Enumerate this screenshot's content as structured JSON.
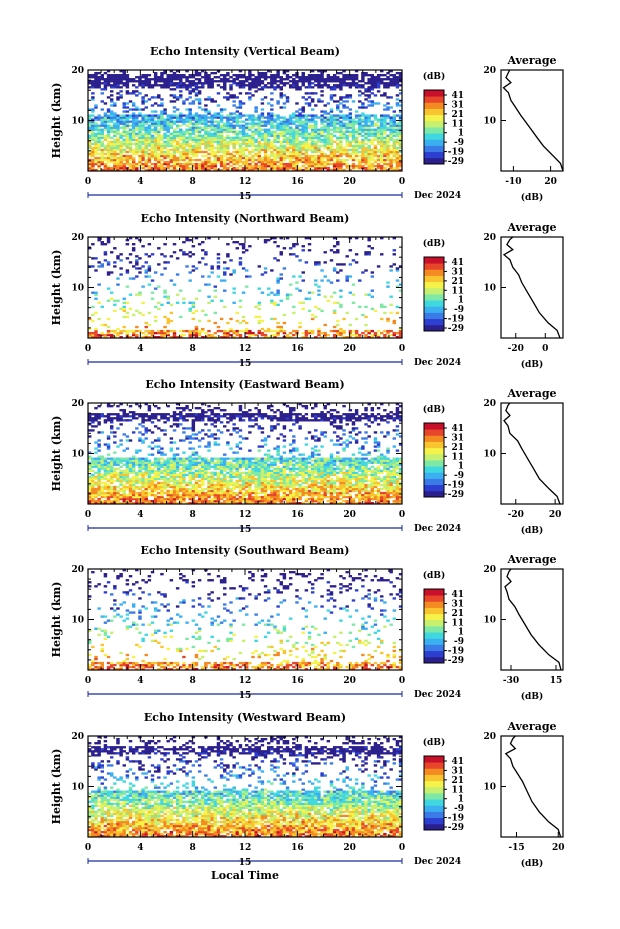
{
  "colors": {
    "scale": [
      "#2a1f8c",
      "#2d3fd0",
      "#3a7be8",
      "#3bb0f0",
      "#40d8e0",
      "#7ee8a6",
      "#c8f070",
      "#f5f24a",
      "#f8c430",
      "#f48a22",
      "#e8462a",
      "#c8102a"
    ]
  },
  "colorbar": {
    "unit": "(dB)",
    "ticks": [
      "41",
      "31",
      "21",
      "11",
      "1",
      "-9",
      "-19",
      "-29"
    ]
  },
  "xaxis": {
    "ticks": [
      "0",
      "4",
      "8",
      "12",
      "16",
      "20",
      "0"
    ],
    "day_label": "15",
    "month_label": "Dec 2024",
    "title": "Local Time"
  },
  "height_axis": {
    "label": "Height (km)",
    "ticks": [
      "20",
      "10"
    ],
    "avg_label": "Average",
    "avg_unit": "(dB)"
  },
  "chart_data": [
    {
      "type": "heatmap",
      "title": "Echo Intensity (Vertical Beam)",
      "ylabel": "Height (km)",
      "xlim": [
        0,
        24
      ],
      "ylim": [
        0,
        20
      ],
      "zlim": [
        -29,
        41
      ],
      "avg_ticks": [
        "-10",
        "20"
      ],
      "avg_xlim": [
        -20,
        30
      ],
      "profile": [
        [
          0,
          30
        ],
        [
          1.5,
          28
        ],
        [
          3,
          22
        ],
        [
          5,
          14
        ],
        [
          7,
          8
        ],
        [
          9,
          2
        ],
        [
          11,
          -4
        ],
        [
          12.5,
          -8
        ],
        [
          14,
          -12
        ],
        [
          15.5,
          -14
        ],
        [
          16.5,
          -18
        ],
        [
          17.5,
          -12
        ],
        [
          18.5,
          -16
        ],
        [
          19.5,
          -14
        ],
        [
          20,
          -13
        ]
      ]
    },
    {
      "type": "heatmap",
      "title": "Echo Intensity (Northward Beam)",
      "ylabel": "Height (km)",
      "xlim": [
        0,
        24
      ],
      "ylim": [
        0,
        20
      ],
      "zlim": [
        -29,
        41
      ],
      "avg_ticks": [
        "-20",
        "0"
      ],
      "avg_xlim": [
        -30,
        12
      ],
      "profile": [
        [
          0,
          10
        ],
        [
          1.5,
          8
        ],
        [
          3,
          2
        ],
        [
          5,
          -4
        ],
        [
          7,
          -8
        ],
        [
          9,
          -12
        ],
        [
          11,
          -16
        ],
        [
          12.5,
          -18
        ],
        [
          14,
          -22
        ],
        [
          15.5,
          -24
        ],
        [
          16.5,
          -28
        ],
        [
          17.5,
          -22
        ],
        [
          18.5,
          -26
        ],
        [
          19.5,
          -24
        ],
        [
          20,
          -22
        ]
      ]
    },
    {
      "type": "heatmap",
      "title": "Echo Intensity (Eastward Beam)",
      "ylabel": "Height (km)",
      "xlim": [
        0,
        24
      ],
      "ylim": [
        0,
        20
      ],
      "zlim": [
        -29,
        41
      ],
      "avg_ticks": [
        "-20",
        "20"
      ],
      "avg_xlim": [
        -35,
        28
      ],
      "profile": [
        [
          0,
          25
        ],
        [
          1.5,
          22
        ],
        [
          3,
          14
        ],
        [
          5,
          4
        ],
        [
          7,
          -2
        ],
        [
          9,
          -8
        ],
        [
          11,
          -14
        ],
        [
          12.5,
          -18
        ],
        [
          14,
          -26
        ],
        [
          15.5,
          -28
        ],
        [
          16.5,
          -32
        ],
        [
          17.5,
          -26
        ],
        [
          18.5,
          -30
        ],
        [
          19.5,
          -28
        ],
        [
          20,
          -26
        ]
      ]
    },
    {
      "type": "heatmap",
      "title": "Echo Intensity (Southward Beam)",
      "ylabel": "Height (km)",
      "xlim": [
        0,
        24
      ],
      "ylim": [
        0,
        20
      ],
      "zlim": [
        -29,
        41
      ],
      "avg_ticks": [
        "-30",
        "15"
      ],
      "avg_xlim": [
        -40,
        22
      ],
      "profile": [
        [
          0,
          20
        ],
        [
          1.5,
          18
        ],
        [
          3,
          8
        ],
        [
          5,
          -2
        ],
        [
          7,
          -10
        ],
        [
          9,
          -16
        ],
        [
          11,
          -22
        ],
        [
          12.5,
          -26
        ],
        [
          14,
          -32
        ],
        [
          15.5,
          -34
        ],
        [
          16.5,
          -36
        ],
        [
          17.5,
          -30
        ],
        [
          18.5,
          -34
        ],
        [
          19.5,
          -32
        ],
        [
          20,
          -30
        ]
      ]
    },
    {
      "type": "heatmap",
      "title": "Echo Intensity (Westward Beam)",
      "ylabel": "Height (km)",
      "xlim": [
        0,
        24
      ],
      "ylim": [
        0,
        20
      ],
      "zlim": [
        -29,
        41
      ],
      "avg_ticks": [
        "-15",
        "20"
      ],
      "avg_xlim": [
        -28,
        24
      ],
      "profile": [
        [
          0,
          22
        ],
        [
          1.5,
          20
        ],
        [
          3,
          12
        ],
        [
          5,
          4
        ],
        [
          7,
          -2
        ],
        [
          9,
          -6
        ],
        [
          11,
          -10
        ],
        [
          12.5,
          -14
        ],
        [
          14,
          -18
        ],
        [
          15.5,
          -20
        ],
        [
          16.5,
          -24
        ],
        [
          17.5,
          -16
        ],
        [
          18.5,
          -20
        ],
        [
          19.5,
          -18
        ],
        [
          20,
          -16
        ]
      ]
    }
  ]
}
